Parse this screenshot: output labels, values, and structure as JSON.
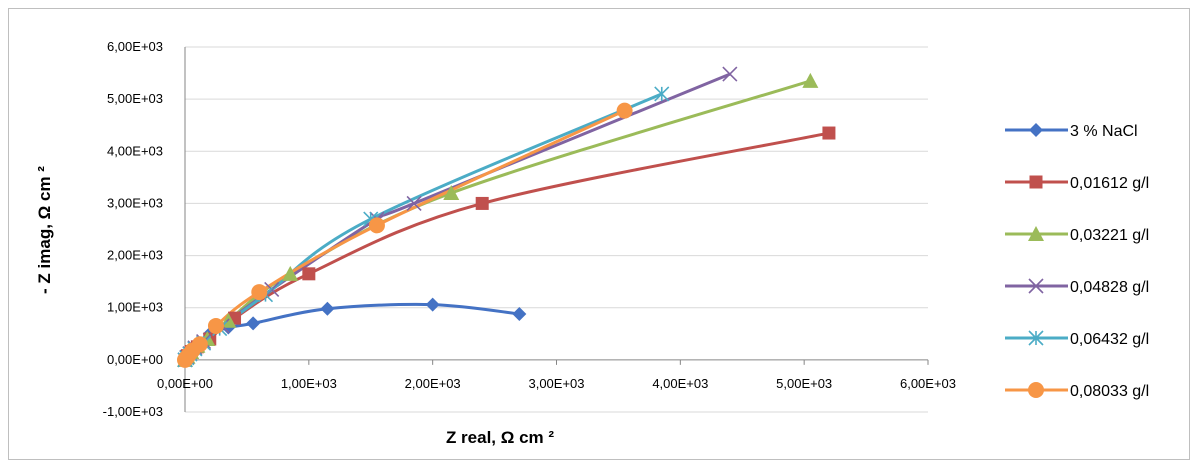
{
  "chart_data": {
    "type": "scatter",
    "xlabel": "Z real, Ω cm ²",
    "ylabel": "- Z imag, Ω cm ²",
    "xlim": [
      0,
      6000
    ],
    "ylim": [
      -1000,
      6000
    ],
    "x_ticks": [
      0,
      1000,
      2000,
      3000,
      4000,
      5000,
      6000
    ],
    "y_ticks": [
      -1000,
      0,
      1000,
      2000,
      3000,
      4000,
      5000,
      6000
    ],
    "x_tick_labels": [
      "0,00E+00",
      "1,00E+03",
      "2,00E+03",
      "3,00E+03",
      "4,00E+03",
      "5,00E+03",
      "6,00E+03"
    ],
    "y_tick_labels": [
      "-1,00E+03",
      "0,00E+00",
      "1,00E+03",
      "2,00E+03",
      "3,00E+03",
      "4,00E+03",
      "5,00E+03",
      "6,00E+03"
    ],
    "grid": true,
    "legend_position": "right",
    "series": [
      {
        "name": "3 % NaCl",
        "color": "#4472C4",
        "marker": "diamond",
        "x": [
          0,
          10,
          25,
          50,
          100,
          200,
          350,
          550,
          1150,
          2000,
          2700
        ],
        "y": [
          0,
          50,
          100,
          180,
          300,
          500,
          620,
          700,
          980,
          1060,
          880
        ]
      },
      {
        "name": "0,01612 g/l",
        "color": "#C0504D",
        "marker": "square",
        "x": [
          0,
          20,
          50,
          100,
          200,
          400,
          1000,
          2400,
          5200
        ],
        "y": [
          0,
          80,
          160,
          250,
          400,
          800,
          1650,
          3000,
          4350
        ]
      },
      {
        "name": "0,03221 g/l",
        "color": "#9BBB59",
        "marker": "triangle",
        "x": [
          0,
          20,
          50,
          100,
          180,
          350,
          850,
          2150,
          5050
        ],
        "y": [
          0,
          60,
          150,
          270,
          400,
          750,
          1650,
          3200,
          5350
        ]
      },
      {
        "name": "0,04828 g/l",
        "color": "#8064A2",
        "marker": "x",
        "x": [
          0,
          15,
          40,
          80,
          150,
          300,
          700,
          1550,
          1850,
          4400
        ],
        "y": [
          0,
          50,
          120,
          230,
          350,
          650,
          1350,
          2700,
          3000,
          5480
        ]
      },
      {
        "name": "0,06432 g/l",
        "color": "#4BACC6",
        "marker": "star",
        "x": [
          0,
          15,
          40,
          80,
          150,
          280,
          650,
          1500,
          3850
        ],
        "y": [
          0,
          40,
          110,
          210,
          320,
          600,
          1250,
          2700,
          5100
        ]
      },
      {
        "name": "0,08033 g/l",
        "color": "#F79646",
        "marker": "circle",
        "x": [
          0,
          10,
          30,
          60,
          120,
          250,
          600,
          1550,
          3550
        ],
        "y": [
          0,
          30,
          90,
          180,
          300,
          650,
          1300,
          2580,
          4780
        ]
      }
    ]
  }
}
